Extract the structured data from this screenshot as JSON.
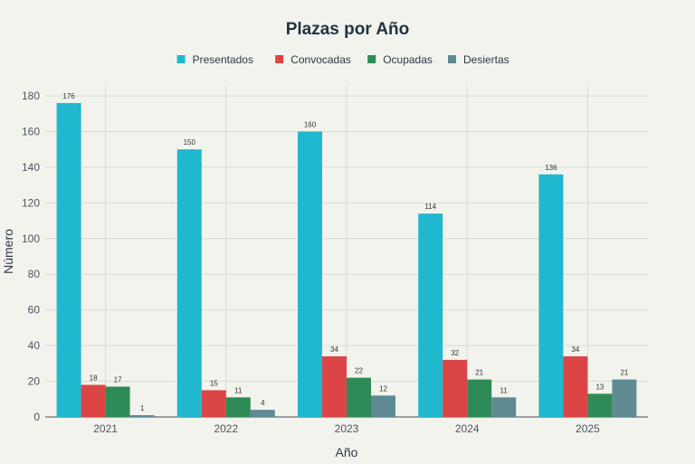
{
  "chart_data": {
    "type": "bar",
    "title": "Plazas por Año",
    "xlabel": "Año",
    "ylabel": "Número",
    "ylim": [
      0,
      180
    ],
    "yticks": [
      0,
      20,
      40,
      60,
      80,
      100,
      120,
      140,
      160,
      180
    ],
    "categories": [
      "2021",
      "2022",
      "2023",
      "2024",
      "2025"
    ],
    "legend_position": "top-center",
    "grid": true,
    "series": [
      {
        "name": "Presentados",
        "color": "#20b8cf",
        "values": [
          176,
          150,
          160,
          114,
          136
        ]
      },
      {
        "name": "Convocadas",
        "color": "#db4545",
        "values": [
          18,
          15,
          34,
          32,
          34
        ]
      },
      {
        "name": "Ocupadas",
        "color": "#2e8b57",
        "values": [
          17,
          11,
          22,
          21,
          13
        ]
      },
      {
        "name": "Desiertas",
        "color": "#5f8a94",
        "values": [
          1,
          4,
          12,
          11,
          21
        ]
      }
    ]
  }
}
